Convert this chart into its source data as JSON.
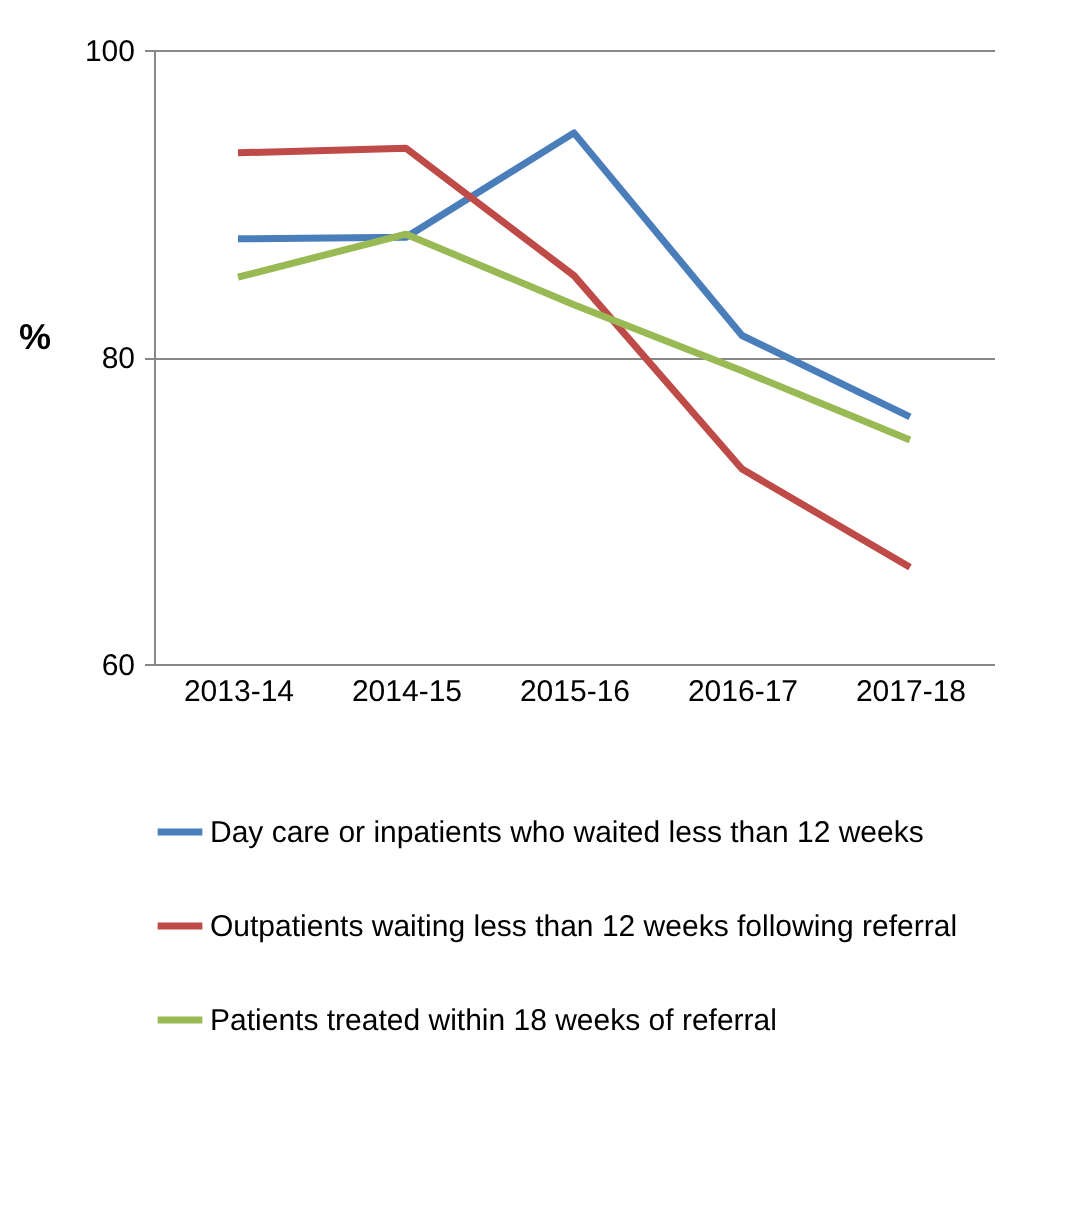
{
  "chart_data": {
    "type": "line",
    "ylabel": "%",
    "categories": [
      "2013-14",
      "2014-15",
      "2015-16",
      "2016-17",
      "2017-18"
    ],
    "series": [
      {
        "name": "Day care or inpatients who waited less than 12 weeks",
        "color": "#4a7ebb",
        "values": [
          87.7,
          87.8,
          94.6,
          81.4,
          76.1
        ]
      },
      {
        "name": "Outpatients waiting less than 12 weeks following referral",
        "color": "#be4b48",
        "values": [
          93.3,
          93.6,
          85.3,
          72.7,
          66.3
        ]
      },
      {
        "name": "Patients treated within 18 weeks of referral",
        "color": "#98b954",
        "values": [
          85.2,
          88.0,
          83.4,
          79.1,
          74.6
        ]
      }
    ],
    "ylim": [
      60,
      100
    ],
    "yticks": [
      60,
      80,
      100
    ],
    "grid": "y",
    "legend": "bottom",
    "marker": "none",
    "line_style": "solid"
  }
}
